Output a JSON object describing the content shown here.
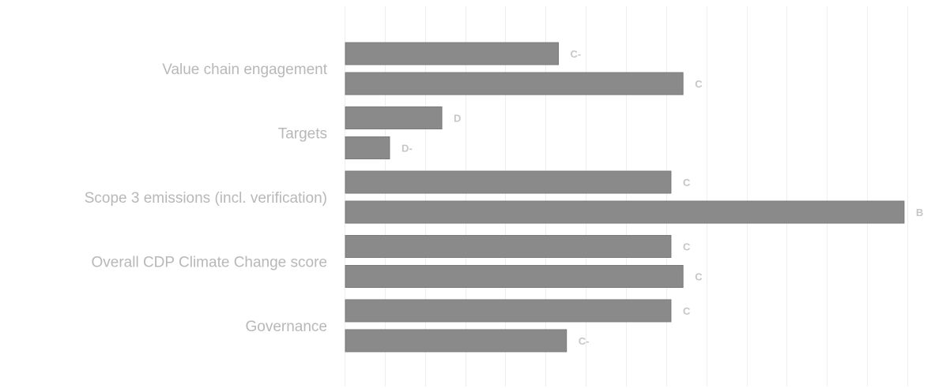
{
  "chart_data": {
    "type": "bar",
    "orientation": "horizontal",
    "title": "",
    "xlabel": "",
    "ylabel": "",
    "xlim": [
      0,
      14
    ],
    "grid": true,
    "legend": "none",
    "categories": [
      "Value chain engagement",
      "Targets",
      "Scope 3 emissions (incl. verification)",
      "Overall CDP Climate Change score",
      "Governance"
    ],
    "series": [
      {
        "values": [
          5.3,
          2.4,
          8.1,
          8.1,
          8.1
        ],
        "labels": [
          "C-",
          "D",
          "C",
          "C",
          "C"
        ]
      },
      {
        "values": [
          8.4,
          1.1,
          13.9,
          8.4,
          5.5
        ],
        "labels": [
          "C",
          "D-",
          "B",
          "C",
          "C-"
        ]
      }
    ],
    "bar_color": "#8a8a8a"
  }
}
